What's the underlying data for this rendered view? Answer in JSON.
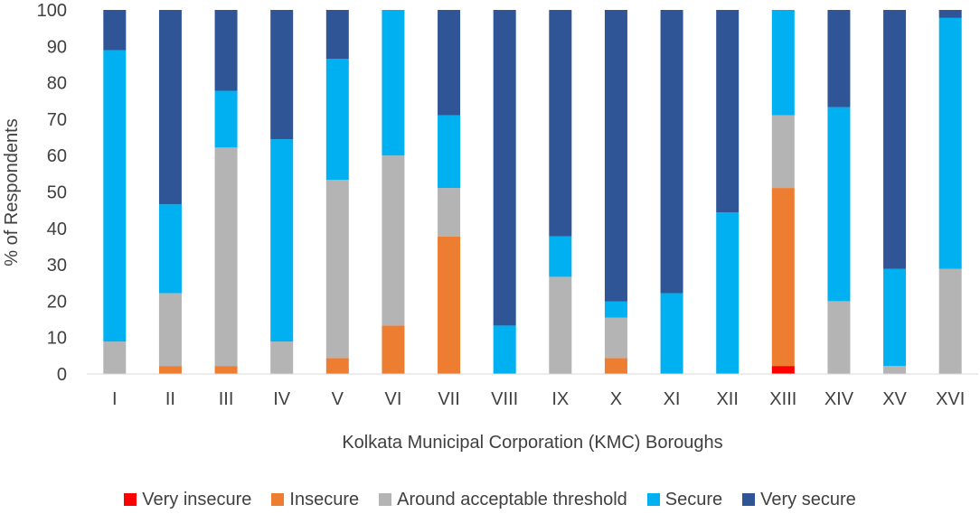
{
  "chart_data": {
    "type": "bar",
    "stacked": true,
    "title": "",
    "xlabel": "Kolkata Municipal Corporation (KMC) Boroughs",
    "ylabel": "% of Respondents",
    "ylim": [
      0,
      100
    ],
    "yticks": [
      0,
      10,
      20,
      30,
      40,
      50,
      60,
      70,
      80,
      90,
      100
    ],
    "categories": [
      "I",
      "II",
      "III",
      "IV",
      "V",
      "VI",
      "VII",
      "VIII",
      "IX",
      "X",
      "XI",
      "XII",
      "XIII",
      "XIV",
      "XV",
      "XVI"
    ],
    "legend_position": "bottom",
    "series": [
      {
        "name": "Very insecure",
        "color": "#ff0000",
        "values": [
          0,
          0,
          0,
          0,
          0,
          0,
          0,
          0,
          0,
          0,
          0,
          0,
          2.2,
          0,
          0,
          0
        ]
      },
      {
        "name": "Insecure",
        "color": "#ed7d31",
        "values": [
          0,
          2.2,
          2.2,
          0,
          4.4,
          13.3,
          37.8,
          0,
          0,
          4.4,
          0,
          0,
          48.9,
          0,
          0,
          0
        ]
      },
      {
        "name": "Around acceptable threshold",
        "color": "#b4b4b4",
        "values": [
          8.9,
          20,
          60,
          8.9,
          48.9,
          46.7,
          13.3,
          0,
          26.7,
          11.1,
          0,
          0,
          20,
          20,
          2.2,
          28.9
        ]
      },
      {
        "name": "Secure",
        "color": "#00b0f0",
        "values": [
          80,
          24.4,
          15.6,
          55.6,
          33.3,
          40,
          20,
          13.3,
          11.1,
          4.4,
          22.2,
          44.4,
          28.9,
          53.3,
          26.7,
          68.9
        ]
      },
      {
        "name": "Very secure",
        "color": "#2f5597",
        "values": [
          11.1,
          53.4,
          22.2,
          35.5,
          13.4,
          0,
          28.9,
          86.7,
          62.2,
          80.1,
          77.8,
          55.6,
          0,
          26.7,
          71.1,
          2.2
        ]
      }
    ]
  }
}
